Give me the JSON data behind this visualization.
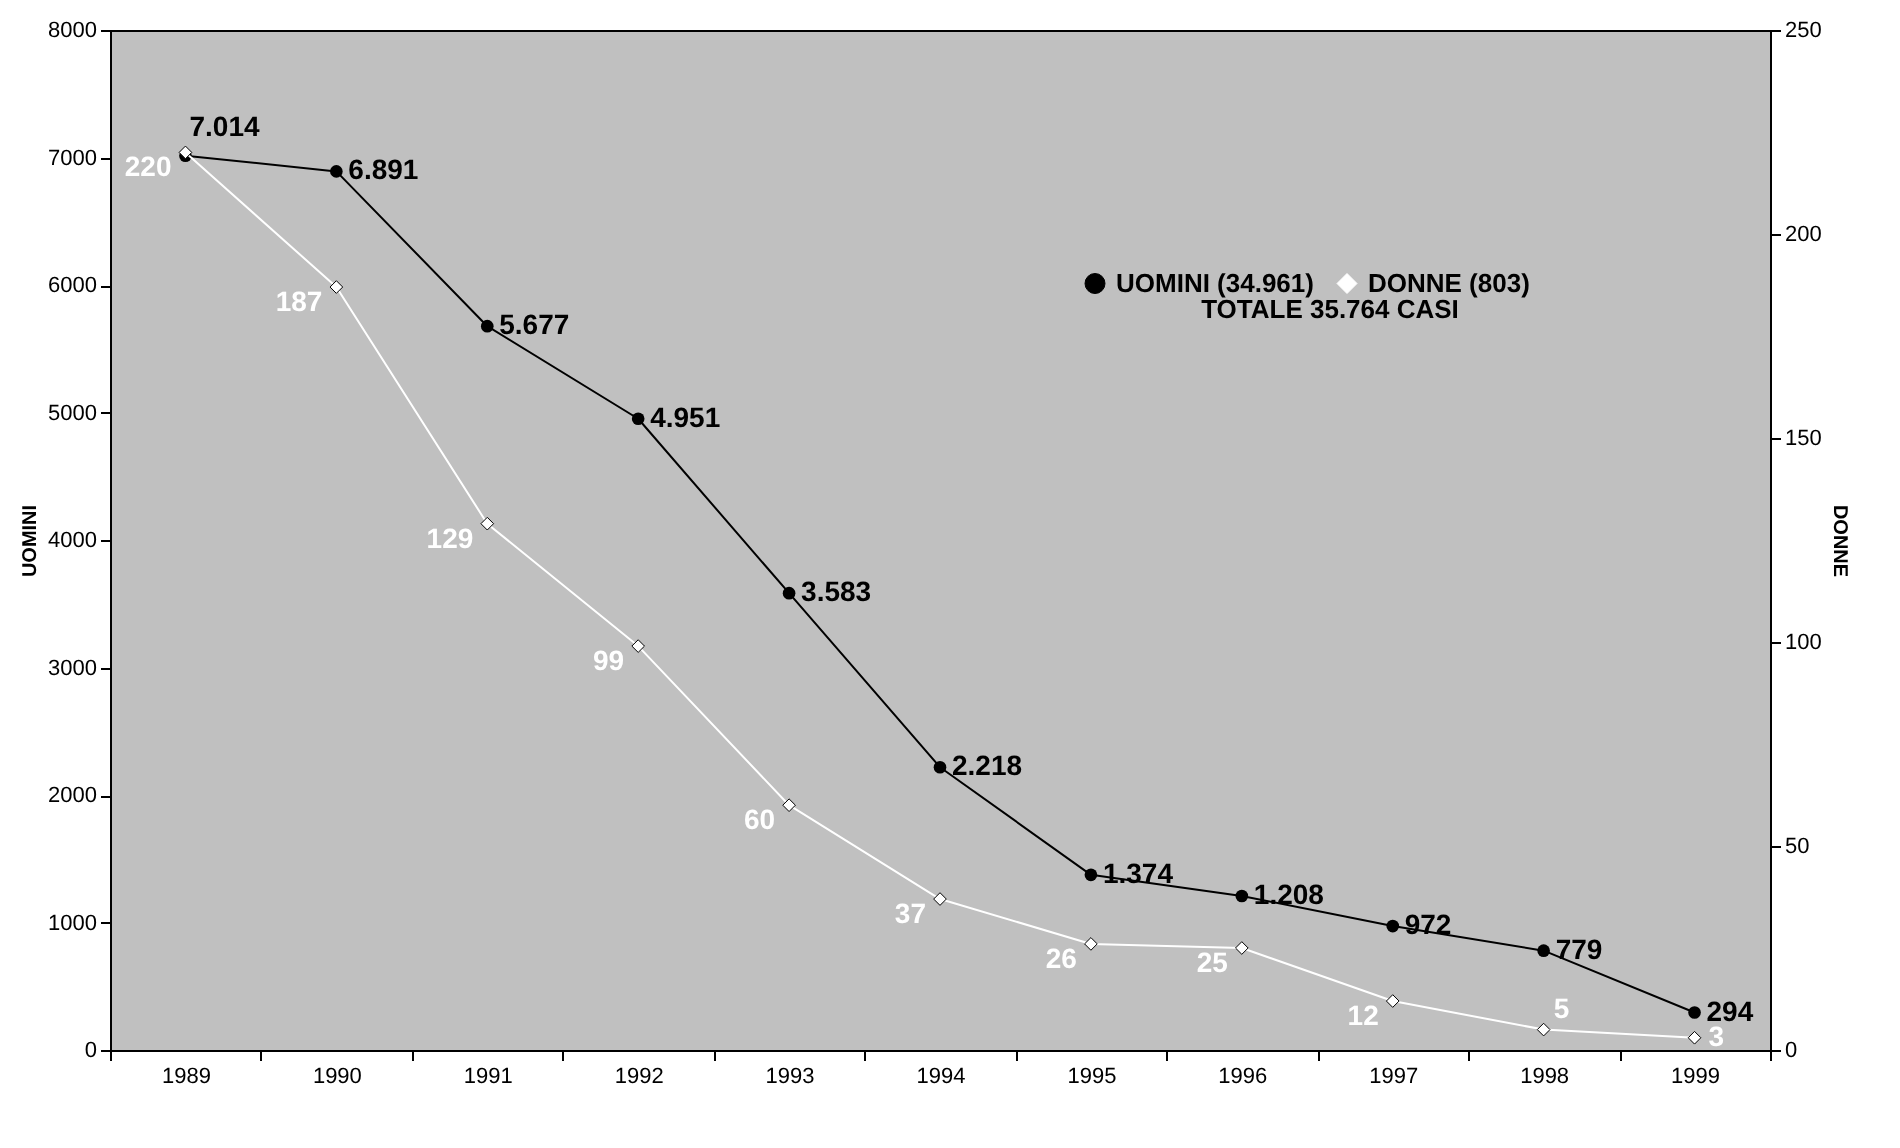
{
  "chart_data": {
    "type": "line",
    "categories": [
      "1989",
      "1990",
      "1991",
      "1992",
      "1993",
      "1994",
      "1995",
      "1996",
      "1997",
      "1998",
      "1999"
    ],
    "series": [
      {
        "name": "UOMINI (34.961)",
        "color": "#000000",
        "marker": "circle",
        "values": [
          7014,
          6891,
          5677,
          4951,
          3583,
          2218,
          1374,
          1208,
          972,
          779,
          294
        ],
        "value_labels": [
          "7.014",
          "6.891",
          "5.677",
          "4.951",
          "3.583",
          "2.218",
          "1.374",
          "1.208",
          "972",
          "779",
          "294"
        ]
      },
      {
        "name": "DONNE (803)",
        "color": "#ffffff",
        "marker": "diamond",
        "axis": "y2",
        "values": [
          220,
          187,
          129,
          99,
          60,
          37,
          26,
          25,
          12,
          5,
          3
        ],
        "value_labels": [
          "220",
          "187",
          "129",
          "99",
          "60",
          "37",
          "26",
          "25",
          "12",
          "5",
          "3"
        ]
      }
    ],
    "ylabel": "UOMINI",
    "y2label": "DONNE",
    "ylim": [
      0,
      8000
    ],
    "yticks": [
      0,
      1000,
      2000,
      3000,
      4000,
      5000,
      6000,
      7000,
      8000
    ],
    "y2lim": [
      0,
      250
    ],
    "y2ticks": [
      0,
      50,
      100,
      150,
      200,
      250
    ],
    "annotations": [
      "TOTALE 35.764 CASI"
    ],
    "legend": "top right",
    "grid": false
  }
}
